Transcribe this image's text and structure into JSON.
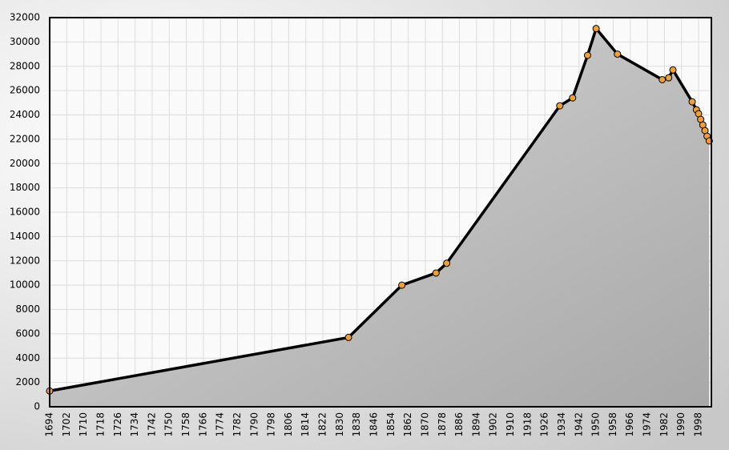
{
  "chart_data": {
    "type": "line",
    "x": [
      1694,
      1834,
      1859,
      1875,
      1880,
      1933,
      1939,
      1946,
      1950,
      1960,
      1981,
      1984,
      1986,
      1995,
      1997,
      1998,
      1999,
      2000,
      2001,
      2002,
      2003
    ],
    "values": [
      1300,
      5700,
      10000,
      11000,
      11800,
      24750,
      25400,
      28900,
      31100,
      29000,
      26900,
      27050,
      27700,
      25080,
      24420,
      24100,
      23630,
      23170,
      22710,
      22250,
      21860
    ],
    "color": "#000000",
    "marker_color": "#f0a030",
    "area": true,
    "xlim": [
      1694,
      2004
    ],
    "ylim": [
      0,
      32000
    ],
    "xticks": [
      1694,
      1702,
      1710,
      1718,
      1726,
      1734,
      1742,
      1750,
      1758,
      1766,
      1774,
      1782,
      1790,
      1798,
      1806,
      1814,
      1822,
      1830,
      1838,
      1846,
      1854,
      1862,
      1870,
      1878,
      1886,
      1894,
      1902,
      1910,
      1918,
      1926,
      1934,
      1942,
      1950,
      1958,
      1966,
      1974,
      1982,
      1990,
      1998
    ],
    "yticks": [
      0,
      2000,
      4000,
      6000,
      8000,
      10000,
      12000,
      14000,
      16000,
      18000,
      20000,
      22000,
      24000,
      26000,
      28000,
      30000,
      32000
    ],
    "grid": true
  }
}
